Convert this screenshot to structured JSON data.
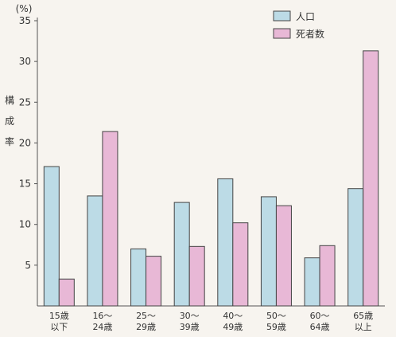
{
  "chart_data": {
    "type": "bar",
    "unit": "(%)",
    "ylabel": "構成率",
    "ylim": [
      0,
      35
    ],
    "yticks": [
      5,
      10,
      15,
      20,
      25,
      30,
      35
    ],
    "grid": false,
    "legend_position": "top-right",
    "categories": [
      [
        "15歳",
        "以下"
      ],
      [
        "16～",
        "24歳"
      ],
      [
        "25～",
        "29歳"
      ],
      [
        "30～",
        "39歳"
      ],
      [
        "40～",
        "49歳"
      ],
      [
        "50～",
        "59歳"
      ],
      [
        "60～",
        "64歳"
      ],
      [
        "65歳",
        "以上"
      ]
    ],
    "series": [
      {
        "name": "人口",
        "color": "#bcdbe6",
        "values": [
          17.1,
          13.5,
          7.0,
          12.7,
          15.6,
          13.4,
          5.9,
          14.4
        ]
      },
      {
        "name": "死者数",
        "color": "#e8b8d6",
        "values": [
          3.3,
          21.4,
          6.1,
          7.3,
          10.2,
          12.3,
          7.4,
          31.3
        ]
      }
    ]
  }
}
